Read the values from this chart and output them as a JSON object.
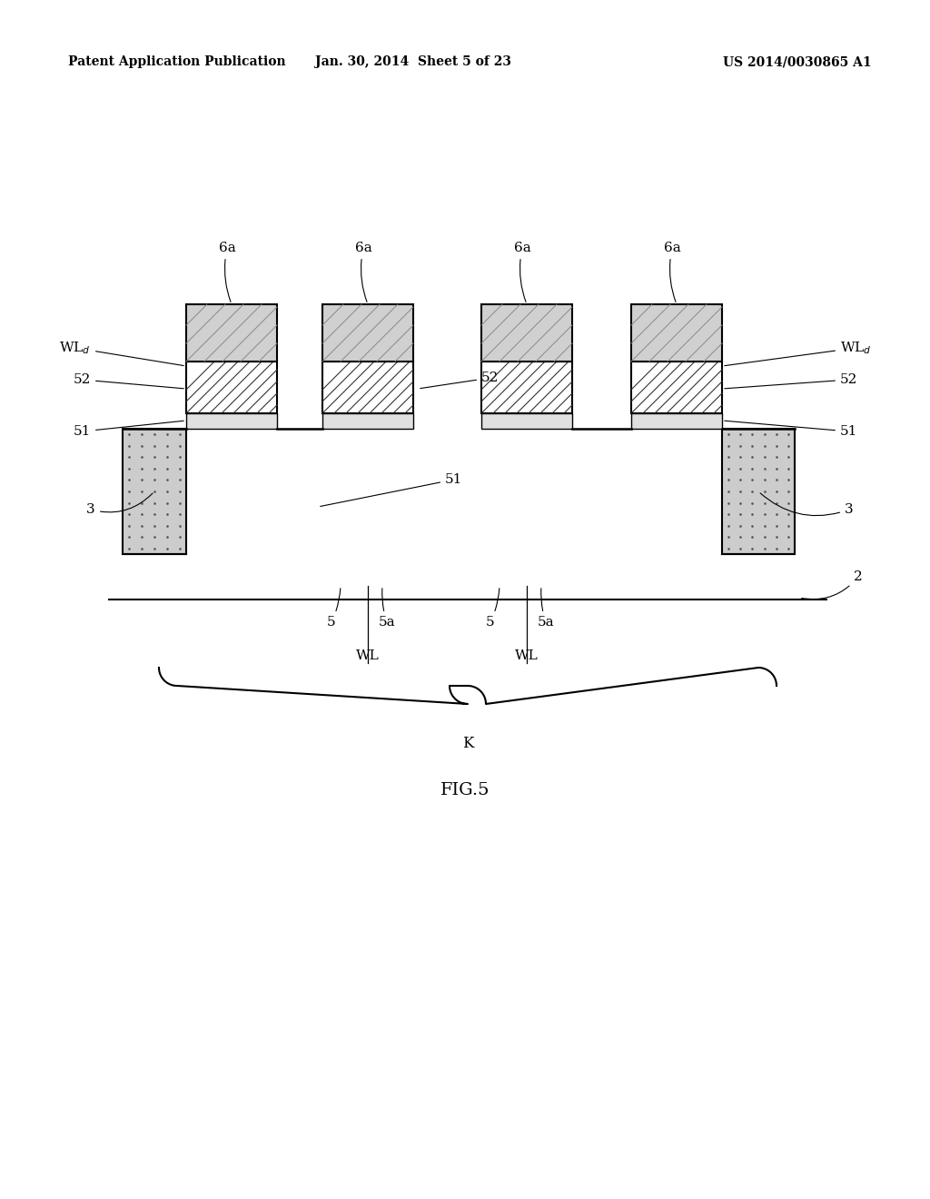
{
  "bg_color": "#ffffff",
  "header_left": "Patent Application Publication",
  "header_mid": "Jan. 30, 2014  Sheet 5 of 23",
  "header_right": "US 2014/0030865 A1",
  "fig_label": "FIG.5"
}
